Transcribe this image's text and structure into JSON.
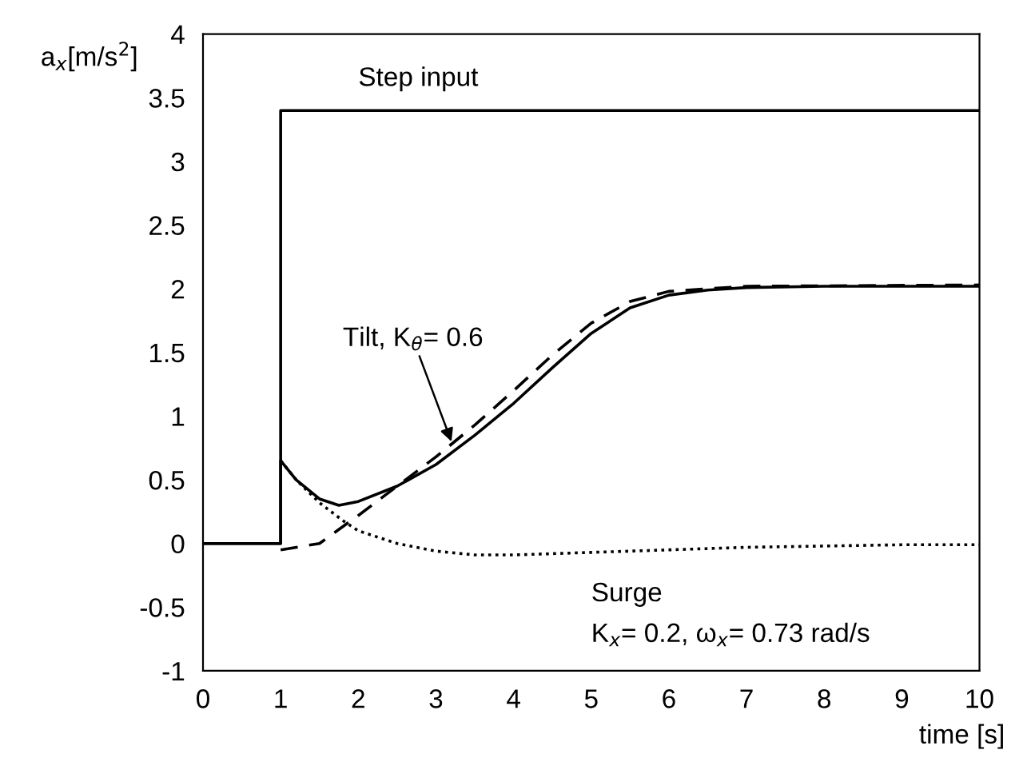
{
  "chart_data": {
    "type": "line",
    "xlabel": "time [s]",
    "ylabel": "a$_{x}$[m/s$^{2}$]",
    "xlim": [
      0,
      10
    ],
    "ylim": [
      -1,
      4
    ],
    "xticks": [
      0,
      1,
      2,
      3,
      4,
      5,
      6,
      7,
      8,
      9,
      10
    ],
    "yticks": [
      -1,
      -0.5,
      0,
      0.5,
      1,
      1.5,
      2,
      2.5,
      3,
      3.5,
      4
    ],
    "grid": false,
    "legend": false,
    "series": [
      {
        "color": "#000000",
        "line_style": "solid",
        "x": [
          0,
          1,
          1,
          10
        ],
        "values": [
          0,
          0,
          3.4,
          3.4
        ]
      },
      {
        "color": "#000000",
        "line_style": "dotted",
        "x": [
          1,
          1.2,
          1.5,
          1.8,
          2,
          2.5,
          3,
          3.5,
          4,
          5,
          6,
          7,
          8,
          9,
          10
        ],
        "values": [
          0.65,
          0.5,
          0.32,
          0.18,
          0.1,
          0,
          -0.06,
          -0.09,
          -0.09,
          -0.07,
          -0.05,
          -0.03,
          -0.02,
          -0.01,
          -0.01
        ]
      },
      {
        "color": "#000000",
        "line_style": "dashed",
        "x": [
          1,
          1.5,
          2,
          2.5,
          3,
          3.5,
          4,
          4.5,
          5,
          5.5,
          6,
          7,
          10
        ],
        "values": [
          -0.05,
          0,
          0.22,
          0.45,
          0.68,
          0.93,
          1.2,
          1.48,
          1.73,
          1.9,
          1.98,
          2.02,
          2.03
        ]
      },
      {
        "color": "#000000",
        "line_style": "solid",
        "x": [
          0,
          1,
          1,
          1.2,
          1.5,
          1.75,
          2,
          2.5,
          3,
          3.5,
          4,
          4.5,
          5,
          5.5,
          6,
          6.5,
          7,
          8,
          10
        ],
        "values": [
          0,
          0,
          0.65,
          0.5,
          0.35,
          0.3,
          0.33,
          0.45,
          0.62,
          0.85,
          1.1,
          1.38,
          1.65,
          1.85,
          1.95,
          1.99,
          2.01,
          2.02,
          2.02
        ]
      }
    ],
    "annotations": [
      {
        "text": "Step input",
        "x": 2,
        "y": 3.4
      },
      {
        "text": "Tilt, K$_{θ}$= 0.6",
        "x": 3.2,
        "y": 0.8
      },
      "Surge",
      "K$_{x}$= 0.2, ω$_{x}$= 0.73 rad/s"
    ]
  }
}
